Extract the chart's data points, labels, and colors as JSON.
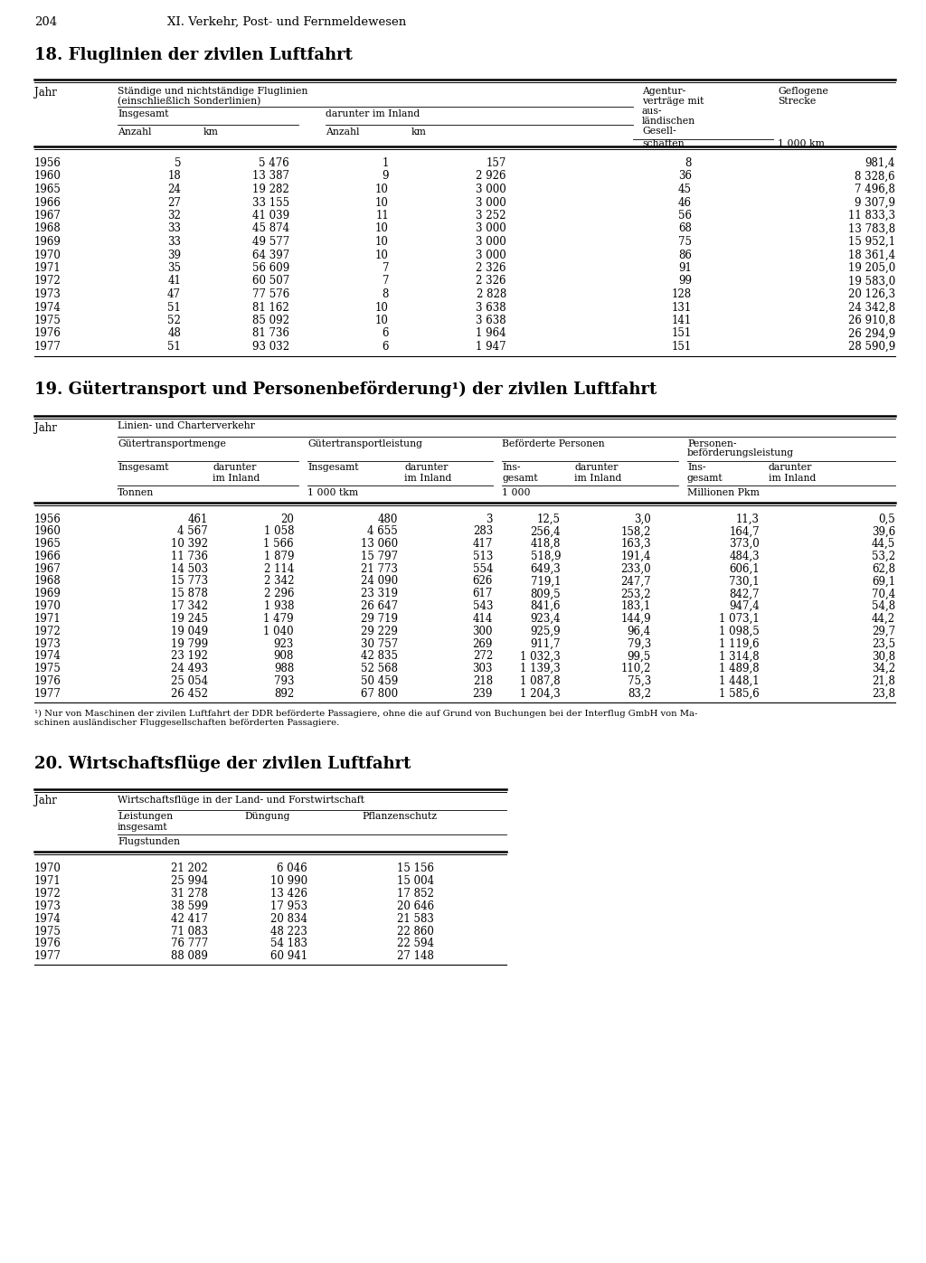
{
  "page_number": "204",
  "chapter_header": "XI. Verkehr, Post- und Fernmeldewesen",
  "section18_title": "18. Fluglinien der zivilen Luftfahrt",
  "section19_title": "19. Gütertransport und Personenbeförderung¹) der zivilen Luftfahrt",
  "section19_footnote": "¹) Nur von Maschinen der zivilen Luftfahrt der DDR beförderte Passagiere, ohne die auf Grund von Buchungen bei der Interflug GmbH von Ma-\nschinen ausländischer Fluggesellschaften beförderten Passagiere.",
  "section20_title": "20. Wirtschaftsflüge der zivilen Luftfahrt",
  "section18_data": [
    [
      "1956",
      "5",
      "5 476",
      "1",
      "157",
      "8",
      "981,4"
    ],
    [
      "1960",
      "18",
      "13 387",
      "9",
      "2 926",
      "36",
      "8 328,6"
    ],
    [
      "1965",
      "24",
      "19 282",
      "10",
      "3 000",
      "45",
      "7 496,8"
    ],
    [
      "1966",
      "27",
      "33 155",
      "10",
      "3 000",
      "46",
      "9 307,9"
    ],
    [
      "1967",
      "32",
      "41 039",
      "11",
      "3 252",
      "56",
      "11 833,3"
    ],
    [
      "1968",
      "33",
      "45 874",
      "10",
      "3 000",
      "68",
      "13 783,8"
    ],
    [
      "1969",
      "33",
      "49 577",
      "10",
      "3 000",
      "75",
      "15 952,1"
    ],
    [
      "1970",
      "39",
      "64 397",
      "10",
      "3 000",
      "86",
      "18 361,4"
    ],
    [
      "1971",
      "35",
      "56 609",
      "7",
      "2 326",
      "91",
      "19 205,0"
    ],
    [
      "1972",
      "41",
      "60 507",
      "7",
      "2 326",
      "99",
      "19 583,0"
    ],
    [
      "1973",
      "47",
      "77 576",
      "8",
      "2 828",
      "128",
      "20 126,3"
    ],
    [
      "1974",
      "51",
      "81 162",
      "10",
      "3 638",
      "131",
      "24 342,8"
    ],
    [
      "1975",
      "52",
      "85 092",
      "10",
      "3 638",
      "141",
      "26 910,8"
    ],
    [
      "1976",
      "48",
      "81 736",
      "6",
      "1 964",
      "151",
      "26 294,9"
    ],
    [
      "1977",
      "51",
      "93 032",
      "6",
      "1 947",
      "151",
      "28 590,9"
    ]
  ],
  "section19_data": [
    [
      "1956",
      "461",
      "20",
      "480",
      "3",
      "12,5",
      "3,0",
      "11,3",
      "0,5"
    ],
    [
      "1960",
      "4 567",
      "1 058",
      "4 655",
      "283",
      "256,4",
      "158,2",
      "164,7",
      "39,6"
    ],
    [
      "1965",
      "10 392",
      "1 566",
      "13 060",
      "417",
      "418,8",
      "163,3",
      "373,0",
      "44,5"
    ],
    [
      "1966",
      "11 736",
      "1 879",
      "15 797",
      "513",
      "518,9",
      "191,4",
      "484,3",
      "53,2"
    ],
    [
      "1967",
      "14 503",
      "2 114",
      "21 773",
      "554",
      "649,3",
      "233,0",
      "606,1",
      "62,8"
    ],
    [
      "1968",
      "15 773",
      "2 342",
      "24 090",
      "626",
      "719,1",
      "247,7",
      "730,1",
      "69,1"
    ],
    [
      "1969",
      "15 878",
      "2 296",
      "23 319",
      "617",
      "809,5",
      "253,2",
      "842,7",
      "70,4"
    ],
    [
      "1970",
      "17 342",
      "1 938",
      "26 647",
      "543",
      "841,6",
      "183,1",
      "947,4",
      "54,8"
    ],
    [
      "1971",
      "19 245",
      "1 479",
      "29 719",
      "414",
      "923,4",
      "144,9",
      "1 073,1",
      "44,2"
    ],
    [
      "1972",
      "19 049",
      "1 040",
      "29 229",
      "300",
      "925,9",
      "96,4",
      "1 098,5",
      "29,7"
    ],
    [
      "1973",
      "19 799",
      "923",
      "30 757",
      "269",
      "911,7",
      "79,3",
      "1 119,6",
      "23,5"
    ],
    [
      "1974",
      "23 192",
      "908",
      "42 835",
      "272",
      "1 032,3",
      "99,5",
      "1 314,8",
      "30,8"
    ],
    [
      "1975",
      "24 493",
      "988",
      "52 568",
      "303",
      "1 139,3",
      "110,2",
      "1 489,8",
      "34,2"
    ],
    [
      "1976",
      "25 054",
      "793",
      "50 459",
      "218",
      "1 087,8",
      "75,3",
      "1 448,1",
      "21,8"
    ],
    [
      "1977",
      "26 452",
      "892",
      "67 800",
      "239",
      "1 204,3",
      "83,2",
      "1 585,6",
      "23,8"
    ]
  ],
  "section20_data": [
    [
      "1970",
      "21 202",
      "6 046",
      "15 156"
    ],
    [
      "1971",
      "25 994",
      "10 990",
      "15 004"
    ],
    [
      "1972",
      "31 278",
      "13 426",
      "17 852"
    ],
    [
      "1973",
      "38 599",
      "17 953",
      "20 646"
    ],
    [
      "1974",
      "42 417",
      "20 834",
      "21 583"
    ],
    [
      "1975",
      "71 083",
      "48 223",
      "22 860"
    ],
    [
      "1976",
      "76 777",
      "54 183",
      "22 594"
    ],
    [
      "1977",
      "88 089",
      "60 941",
      "27 148"
    ]
  ]
}
